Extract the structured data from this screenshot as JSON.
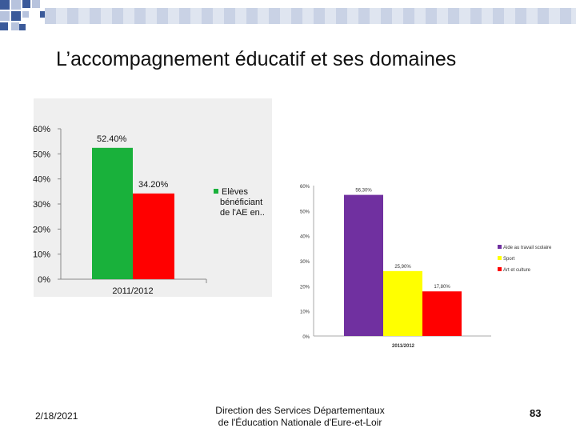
{
  "slide": {
    "title": "L’accompagnement éducatif et ses domaines",
    "footer_date": "2/18/2021",
    "footer_line1": "Direction des Services Départementaux",
    "footer_line2": "de l'Éducation Nationale d'Eure-et-Loir",
    "page_number": "83"
  },
  "colors": {
    "deco_dark": "#3b5a9a",
    "deco_light": "#b7c3dd",
    "green": "#19b13b",
    "red": "#ff0000",
    "purple": "#7030a0",
    "yellow": "#ffff00"
  },
  "chart_data": [
    {
      "type": "bar",
      "categories": [
        "2011/2012"
      ],
      "series": [
        {
          "name": "Elèves bénéficiant de l'AE en..",
          "values": [
            52.4
          ],
          "labels": [
            "52.40%"
          ]
        },
        {
          "name": "",
          "values": [
            34.2
          ],
          "labels": [
            "34.20%"
          ]
        }
      ],
      "ylim": [
        0,
        60
      ],
      "yticks": [
        "0%",
        "10%",
        "20%",
        "30%",
        "40%",
        "50%",
        "60%"
      ],
      "legend": [
        "Elèves",
        "bénéficiant",
        "de l'AE en.."
      ],
      "legend_position": "right",
      "grid": false
    },
    {
      "type": "bar",
      "categories": [
        "2011/2012"
      ],
      "series": [
        {
          "name": "Aide au travail scolaire",
          "values": [
            56.3
          ],
          "labels": [
            "56,30%"
          ]
        },
        {
          "name": "Sport",
          "values": [
            25.9
          ],
          "labels": [
            "25,90%"
          ]
        },
        {
          "name": "Art et culture",
          "values": [
            17.8
          ],
          "labels": [
            "17,80%"
          ]
        }
      ],
      "ylim": [
        0,
        60
      ],
      "yticks": [
        "0%",
        "10%",
        "20%",
        "30%",
        "40%",
        "50%",
        "60%"
      ],
      "legend_position": "right",
      "grid": false
    }
  ]
}
